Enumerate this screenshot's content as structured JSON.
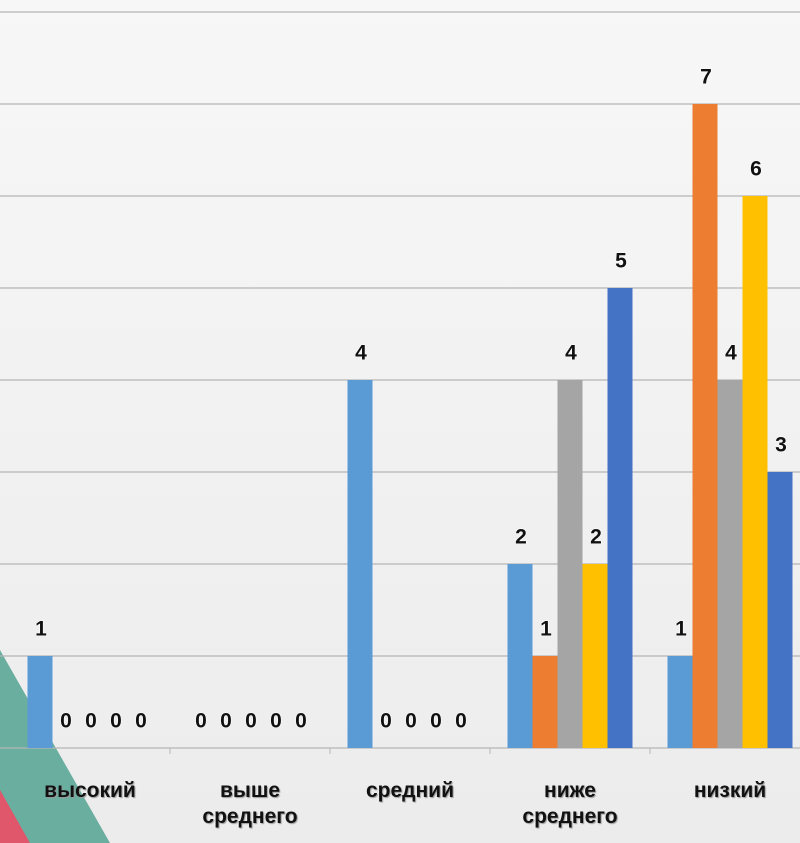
{
  "chart_data": {
    "type": "bar",
    "categories": [
      "высокий",
      "выше среднего",
      "средний",
      "ниже среднего",
      "низкий"
    ],
    "series": [
      {
        "color": "#5b9bd5",
        "values": [
          1,
          0,
          4,
          2,
          1
        ]
      },
      {
        "color": "#ed7d31",
        "values": [
          0,
          0,
          0,
          1,
          7
        ]
      },
      {
        "color": "#a5a5a5",
        "values": [
          0,
          0,
          0,
          4,
          4
        ]
      },
      {
        "color": "#ffc000",
        "values": [
          0,
          0,
          0,
          2,
          6
        ]
      },
      {
        "color": "#4472c4",
        "values": [
          0,
          0,
          0,
          5,
          3
        ]
      }
    ],
    "ylim": [
      0,
      8
    ],
    "yticks": [
      0,
      1,
      2,
      3,
      4,
      5,
      6,
      7,
      8
    ],
    "grid": true,
    "data_labels": true
  }
}
